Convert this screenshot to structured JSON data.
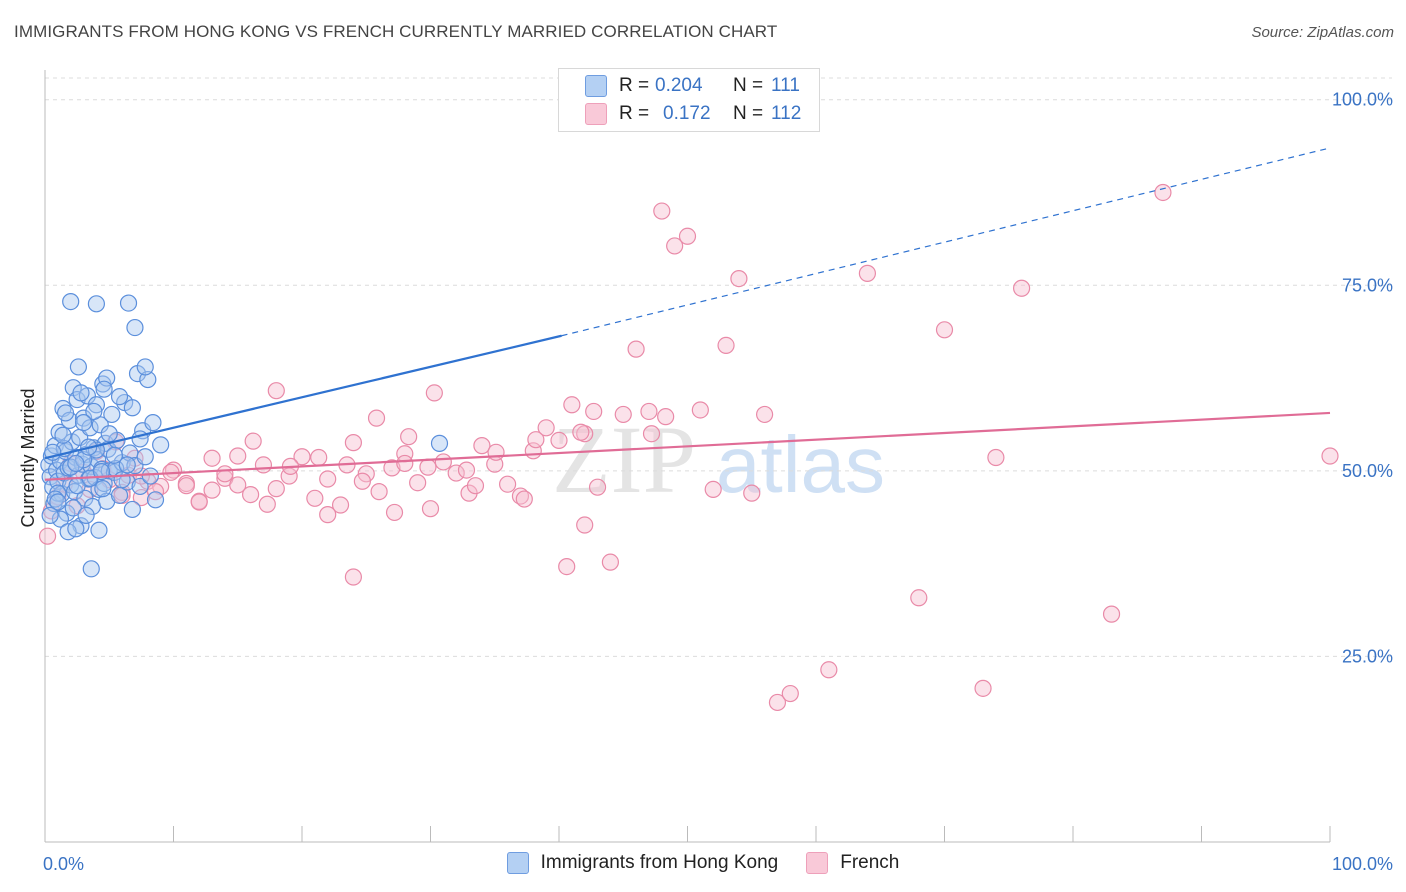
{
  "header": {
    "title": "IMMIGRANTS FROM HONG KONG VS FRENCH CURRENTLY MARRIED CORRELATION CHART",
    "source": "Source: ZipAtlas.com"
  },
  "legend": {
    "rows": [
      {
        "r_label": "R =",
        "r_value": "0.204",
        "n_label": "N =",
        "n_value": "111"
      },
      {
        "r_label": "R =",
        "r_value": "0.172",
        "n_label": "N =",
        "n_value": "112"
      }
    ]
  },
  "bottom_legend": {
    "items": [
      {
        "label": "Immigrants from Hong Kong"
      },
      {
        "label": "French"
      }
    ]
  },
  "watermark": {
    "zip": "ZIP",
    "atlas": "atlas"
  },
  "colors": {
    "blue_fill": "#a9c8f0",
    "blue_stroke": "#5b8fdc",
    "blue_line": "#2f72d0",
    "pink_fill": "#f7bfd0",
    "pink_stroke": "#e98aa8",
    "pink_line": "#e06c96",
    "tick_label": "#3a73c4",
    "grid": "#dcdcdc"
  },
  "chart_data": {
    "type": "scatter",
    "title": "IMMIGRANTS FROM HONG KONG VS FRENCH CURRENTLY MARRIED CORRELATION CHART",
    "xlabel": "",
    "ylabel": "Currently Married",
    "xlim": [
      0,
      100
    ],
    "ylim": [
      0,
      104
    ],
    "x_tick_labels": [
      {
        "value": 0,
        "label": "0.0%"
      },
      {
        "value": 100,
        "label": "100.0%"
      }
    ],
    "y_tick_labels": [
      {
        "value": 25,
        "label": "25.0%"
      },
      {
        "value": 50,
        "label": "50.0%"
      },
      {
        "value": 75,
        "label": "75.0%"
      },
      {
        "value": 100,
        "label": "100.0%"
      }
    ],
    "grid": true,
    "legend_position": "top-center",
    "series": [
      {
        "name": "Immigrants from Hong Kong",
        "color": "#5b8fdc",
        "r": 0.204,
        "n": 111,
        "trend": {
          "x": [
            0,
            40.2
          ],
          "y": [
            51.7,
            68.2
          ],
          "dashed_to": [
            100,
            93.5
          ]
        },
        "points": [
          [
            0.3,
            50.8
          ],
          [
            0.4,
            49.2
          ],
          [
            0.5,
            52.0
          ],
          [
            0.6,
            47.8
          ],
          [
            0.7,
            45.6
          ],
          [
            0.8,
            53.4
          ],
          [
            0.9,
            50.1
          ],
          [
            1.0,
            48.6
          ],
          [
            1.1,
            55.2
          ],
          [
            1.2,
            51.3
          ],
          [
            1.3,
            46.9
          ],
          [
            1.4,
            58.4
          ],
          [
            1.5,
            49.7
          ],
          [
            1.6,
            52.6
          ],
          [
            1.7,
            44.3
          ],
          [
            1.8,
            50.4
          ],
          [
            1.9,
            56.8
          ],
          [
            2.0,
            48.1
          ],
          [
            2.1,
            53.9
          ],
          [
            2.2,
            61.2
          ],
          [
            2.3,
            47.2
          ],
          [
            2.4,
            51.8
          ],
          [
            2.5,
            59.6
          ],
          [
            2.6,
            49.4
          ],
          [
            2.7,
            54.5
          ],
          [
            2.8,
            42.6
          ],
          [
            2.9,
            50.9
          ],
          [
            3.0,
            57.1
          ],
          [
            3.1,
            46.3
          ],
          [
            3.2,
            52.2
          ],
          [
            3.3,
            60.1
          ],
          [
            3.4,
            48.9
          ],
          [
            3.5,
            55.8
          ],
          [
            3.6,
            50.6
          ],
          [
            3.7,
            45.2
          ],
          [
            3.8,
            53.1
          ],
          [
            3.9,
            49.1
          ],
          [
            4.0,
            58.9
          ],
          [
            4.1,
            51.5
          ],
          [
            4.2,
            47.5
          ],
          [
            4.3,
            56.2
          ],
          [
            4.4,
            50.2
          ],
          [
            4.5,
            61.7
          ],
          [
            4.6,
            48.3
          ],
          [
            4.7,
            53.7
          ],
          [
            4.8,
            45.9
          ],
          [
            4.9,
            52.9
          ],
          [
            5.0,
            50.0
          ],
          [
            5.2,
            57.6
          ],
          [
            5.4,
            49.8
          ],
          [
            5.6,
            54.1
          ],
          [
            5.8,
            46.7
          ],
          [
            6.0,
            51.1
          ],
          [
            6.2,
            59.2
          ],
          [
            6.4,
            48.5
          ],
          [
            6.6,
            52.4
          ],
          [
            6.8,
            44.8
          ],
          [
            7.0,
            50.7
          ],
          [
            7.2,
            63.1
          ],
          [
            7.4,
            47.9
          ],
          [
            7.6,
            55.4
          ],
          [
            7.8,
            51.9
          ],
          [
            8.0,
            62.3
          ],
          [
            8.2,
            49.3
          ],
          [
            8.4,
            56.5
          ],
          [
            8.6,
            46.1
          ],
          [
            1.0,
            47.0
          ],
          [
            1.5,
            53.0
          ],
          [
            2.0,
            50.5
          ],
          [
            2.5,
            48.0
          ],
          [
            3.0,
            51.5
          ],
          [
            3.5,
            49.0
          ],
          [
            4.0,
            52.8
          ],
          [
            4.5,
            47.6
          ],
          [
            5.0,
            55.0
          ],
          [
            5.5,
            50.3
          ],
          [
            6.0,
            48.8
          ],
          [
            1.2,
            43.5
          ],
          [
            2.2,
            45.0
          ],
          [
            3.2,
            44.0
          ],
          [
            1.8,
            41.8
          ],
          [
            4.2,
            42.0
          ],
          [
            0.8,
            46.2
          ],
          [
            1.6,
            57.8
          ],
          [
            2.8,
            60.5
          ],
          [
            3.8,
            58.0
          ],
          [
            4.8,
            62.5
          ],
          [
            5.8,
            60.0
          ],
          [
            6.8,
            58.5
          ],
          [
            7.8,
            64.0
          ],
          [
            0.6,
            52.5
          ],
          [
            1.4,
            54.8
          ],
          [
            2.4,
            51.0
          ],
          [
            3.4,
            53.2
          ],
          [
            4.4,
            49.9
          ],
          [
            5.4,
            52.1
          ],
          [
            6.4,
            50.8
          ],
          [
            7.4,
            54.3
          ],
          [
            2.0,
            72.8
          ],
          [
            4.0,
            72.5
          ],
          [
            6.5,
            72.6
          ],
          [
            7.0,
            69.3
          ],
          [
            3.6,
            36.8
          ],
          [
            9.0,
            53.5
          ],
          [
            3.0,
            56.5
          ],
          [
            2.6,
            64.0
          ],
          [
            4.6,
            61.0
          ],
          [
            1.0,
            45.8
          ],
          [
            2.4,
            42.2
          ],
          [
            0.4,
            44.0
          ],
          [
            30.7,
            53.7
          ]
        ]
      },
      {
        "name": "French",
        "color": "#e98aa8",
        "r": 0.172,
        "n": 112,
        "trend": {
          "x": [
            0,
            100
          ],
          "y": [
            48.8,
            57.8
          ]
        },
        "points": [
          [
            0.2,
            41.2
          ],
          [
            0.5,
            44.6
          ],
          [
            1.0,
            46.5
          ],
          [
            1.5,
            48.2
          ],
          [
            2.0,
            51.0
          ],
          [
            2.5,
            45.3
          ],
          [
            3.0,
            49.8
          ],
          [
            3.5,
            47.5
          ],
          [
            4.0,
            52.6
          ],
          [
            4.5,
            50.3
          ],
          [
            5.0,
            48.8
          ],
          [
            5.5,
            53.9
          ],
          [
            6.0,
            47.1
          ],
          [
            6.5,
            49.4
          ],
          [
            7.0,
            51.7
          ],
          [
            7.5,
            46.4
          ],
          [
            8.0,
            48.6
          ],
          [
            9.0,
            47.9
          ],
          [
            10.0,
            50.1
          ],
          [
            11.0,
            48.3
          ],
          [
            12.0,
            45.9
          ],
          [
            13.0,
            47.4
          ],
          [
            14.0,
            49.0
          ],
          [
            15.0,
            48.1
          ],
          [
            16.0,
            46.8
          ],
          [
            17.0,
            50.8
          ],
          [
            18.0,
            47.6
          ],
          [
            19.0,
            49.3
          ],
          [
            20.0,
            51.9
          ],
          [
            21.0,
            46.3
          ],
          [
            22.0,
            48.9
          ],
          [
            23.0,
            45.4
          ],
          [
            24.0,
            53.8
          ],
          [
            25.0,
            49.6
          ],
          [
            26.0,
            47.2
          ],
          [
            27.0,
            50.4
          ],
          [
            28.0,
            52.3
          ],
          [
            29.0,
            48.4
          ],
          [
            30.0,
            44.9
          ],
          [
            31.0,
            51.2
          ],
          [
            32.0,
            49.7
          ],
          [
            33.0,
            47.0
          ],
          [
            34.0,
            53.4
          ],
          [
            35.0,
            50.9
          ],
          [
            36.0,
            48.2
          ],
          [
            37.0,
            46.6
          ],
          [
            38.0,
            52.7
          ],
          [
            39.0,
            55.8
          ],
          [
            40.0,
            54.1
          ],
          [
            41.0,
            58.9
          ],
          [
            42.0,
            42.7
          ],
          [
            43.0,
            47.8
          ],
          [
            44.0,
            37.7
          ],
          [
            45.0,
            57.6
          ],
          [
            46.0,
            66.4
          ],
          [
            47.0,
            58.0
          ],
          [
            48.0,
            85.0
          ],
          [
            49.0,
            80.3
          ],
          [
            50.0,
            81.6
          ],
          [
            51.0,
            58.2
          ],
          [
            52.0,
            47.5
          ],
          [
            53.0,
            66.9
          ],
          [
            54.0,
            75.9
          ],
          [
            55.0,
            47.0
          ],
          [
            56.0,
            57.6
          ],
          [
            57.0,
            18.8
          ],
          [
            58.0,
            20.0
          ],
          [
            61.0,
            23.2
          ],
          [
            64.0,
            76.6
          ],
          [
            68.0,
            32.9
          ],
          [
            70.0,
            69.0
          ],
          [
            73.0,
            20.7
          ],
          [
            74.0,
            51.8
          ],
          [
            76.0,
            74.6
          ],
          [
            83.0,
            30.7
          ],
          [
            87.0,
            87.5
          ],
          [
            100.0,
            52.0
          ],
          [
            47.2,
            55.0
          ],
          [
            48.3,
            57.3
          ],
          [
            42.7,
            58.0
          ],
          [
            42.0,
            55.0
          ],
          [
            41.7,
            55.2
          ],
          [
            40.6,
            37.1
          ],
          [
            38.2,
            54.2
          ],
          [
            37.3,
            46.2
          ],
          [
            35.1,
            52.5
          ],
          [
            33.5,
            48.0
          ],
          [
            32.8,
            50.1
          ],
          [
            29.8,
            50.5
          ],
          [
            28.3,
            54.6
          ],
          [
            28.0,
            51.0
          ],
          [
            27.2,
            44.4
          ],
          [
            25.8,
            57.1
          ],
          [
            24.7,
            48.6
          ],
          [
            24.0,
            35.7
          ],
          [
            23.5,
            50.8
          ],
          [
            22.0,
            44.1
          ],
          [
            21.3,
            51.8
          ],
          [
            19.1,
            50.6
          ],
          [
            18.0,
            60.8
          ],
          [
            17.3,
            45.5
          ],
          [
            16.2,
            54.0
          ],
          [
            15.0,
            52.0
          ],
          [
            14.0,
            49.6
          ],
          [
            13.0,
            51.7
          ],
          [
            12.0,
            45.8
          ],
          [
            11.0,
            48.0
          ],
          [
            9.8,
            49.8
          ],
          [
            8.6,
            47.2
          ],
          [
            7.5,
            49.3
          ],
          [
            6.0,
            46.7
          ],
          [
            30.3,
            60.5
          ]
        ]
      }
    ]
  }
}
